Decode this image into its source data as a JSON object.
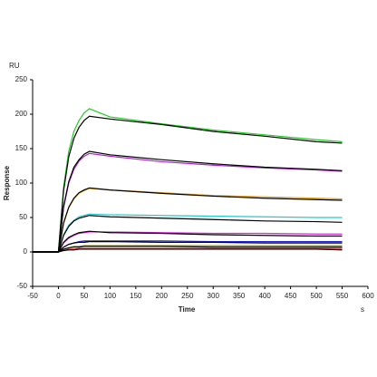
{
  "chart_data": {
    "type": "line",
    "y_unit": "RU",
    "x_unit": "s",
    "xlabel": "Time",
    "ylabel": "Response",
    "x": [
      -50,
      0,
      10,
      20,
      30,
      40,
      50,
      60,
      100,
      200,
      300,
      400,
      500,
      550
    ],
    "xlim": [
      -50,
      600
    ],
    "xticks": [
      -50,
      0,
      50,
      100,
      150,
      200,
      250,
      300,
      350,
      400,
      450,
      500,
      550,
      600
    ],
    "ylim": [
      -50,
      250
    ],
    "yticks": [
      -50,
      0,
      50,
      100,
      150,
      200,
      250
    ],
    "series": [
      {
        "color": "#22cc22",
        "values": [
          0,
          0,
          94,
          146,
          175,
          191,
          202,
          208,
          196,
          186,
          177,
          170,
          163,
          160
        ]
      },
      {
        "color": "#aa22cc",
        "values": [
          0,
          0,
          64,
          100,
          120,
          132,
          139,
          143,
          139,
          131,
          126,
          122,
          119,
          117
        ]
      },
      {
        "color": "#e0a020",
        "values": [
          0,
          0,
          41,
          64,
          77,
          85,
          89,
          92,
          90,
          86,
          82,
          80,
          78,
          77
        ]
      },
      {
        "color": "#22cccc",
        "values": [
          0,
          0,
          25,
          39,
          46,
          51,
          53,
          55,
          54,
          53,
          52,
          51,
          50,
          50
        ]
      },
      {
        "color": "#dd22dd",
        "values": [
          0,
          0,
          13,
          20,
          24,
          27,
          28,
          29,
          29,
          28,
          27,
          27,
          26,
          26
        ]
      },
      {
        "color": "#2222dd",
        "values": [
          0,
          0,
          7,
          11,
          13,
          15,
          16,
          16,
          16,
          16,
          15,
          15,
          15,
          15
        ]
      },
      {
        "color": "#888822",
        "values": [
          0,
          0,
          4,
          6,
          8,
          8,
          9,
          9,
          9,
          9,
          9,
          9,
          9,
          9
        ]
      },
      {
        "color": "#cc2222",
        "values": [
          0,
          0,
          2,
          4,
          4,
          5,
          5,
          5,
          5,
          5,
          5,
          5,
          5,
          5
        ]
      },
      {
        "color": "#000000",
        "values": [
          0,
          0,
          89,
          138,
          165,
          181,
          191,
          197,
          193,
          185,
          175,
          168,
          160,
          158
        ]
      },
      {
        "color": "#000000",
        "values": [
          0,
          0,
          66,
          102,
          123,
          134,
          142,
          146,
          141,
          134,
          128,
          123,
          120,
          118
        ]
      },
      {
        "color": "#000000",
        "values": [
          0,
          0,
          42,
          65,
          78,
          86,
          90,
          93,
          90,
          85,
          81,
          78,
          76,
          75
        ]
      },
      {
        "color": "#000000",
        "values": [
          0,
          0,
          24,
          37,
          45,
          49,
          51,
          53,
          51,
          49,
          47,
          45,
          44,
          43
        ]
      },
      {
        "color": "#000000",
        "values": [
          0,
          0,
          14,
          21,
          25,
          28,
          29,
          30,
          28,
          27,
          25,
          24,
          23,
          23
        ]
      },
      {
        "color": "#000000",
        "values": [
          0,
          0,
          7,
          11,
          13,
          14,
          14,
          15,
          15,
          14,
          14,
          13,
          13,
          13
        ]
      },
      {
        "color": "#000000",
        "values": [
          0,
          0,
          4,
          6,
          7,
          7,
          8,
          8,
          8,
          8,
          7,
          7,
          7,
          7
        ]
      },
      {
        "color": "#000000",
        "values": [
          0,
          0,
          2,
          3,
          3,
          4,
          4,
          4,
          4,
          4,
          4,
          4,
          4,
          3
        ]
      }
    ]
  }
}
